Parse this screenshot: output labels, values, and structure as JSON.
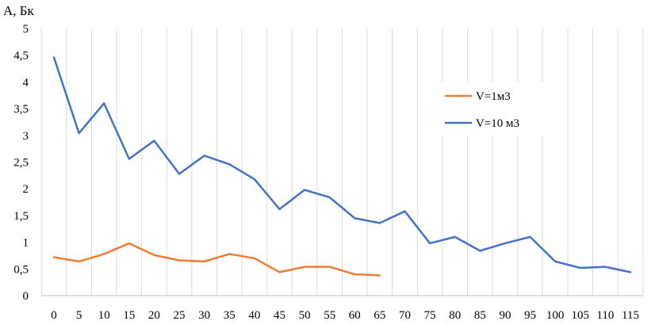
{
  "chart_data": {
    "type": "line",
    "title": "",
    "ylabel": "A, Бк",
    "xlabel": "",
    "x": [
      0,
      5,
      10,
      15,
      20,
      25,
      30,
      35,
      40,
      45,
      50,
      55,
      60,
      65,
      70,
      75,
      80,
      85,
      90,
      95,
      100,
      105,
      110,
      115
    ],
    "xlim": [
      0,
      115
    ],
    "ylim": [
      0,
      5
    ],
    "yticks": [
      "0",
      "0,5",
      "1",
      "1,5",
      "2",
      "2,5",
      "3",
      "3,5",
      "4",
      "4,5",
      "5"
    ],
    "ytick_values": [
      0,
      0.5,
      1,
      1.5,
      2,
      2.5,
      3,
      3.5,
      4,
      4.5,
      5
    ],
    "grid": "vertical",
    "legend_position": "right",
    "series": [
      {
        "name": "V=1м3",
        "color": "#ED7D31",
        "values": [
          0.72,
          0.64,
          0.78,
          0.98,
          0.76,
          0.66,
          0.64,
          0.78,
          0.7,
          0.44,
          0.54,
          0.54,
          0.4,
          0.38,
          null,
          null,
          null,
          null,
          null,
          null,
          null,
          null,
          null,
          null
        ]
      },
      {
        "name": "V=10 м3",
        "color": "#4472C4",
        "values": [
          4.46,
          3.04,
          3.6,
          2.56,
          2.9,
          2.28,
          2.62,
          2.46,
          2.18,
          1.62,
          1.98,
          1.84,
          1.45,
          1.36,
          1.58,
          0.98,
          1.1,
          0.84,
          0.98,
          1.1,
          0.64,
          0.52,
          0.54,
          0.44
        ]
      }
    ]
  }
}
